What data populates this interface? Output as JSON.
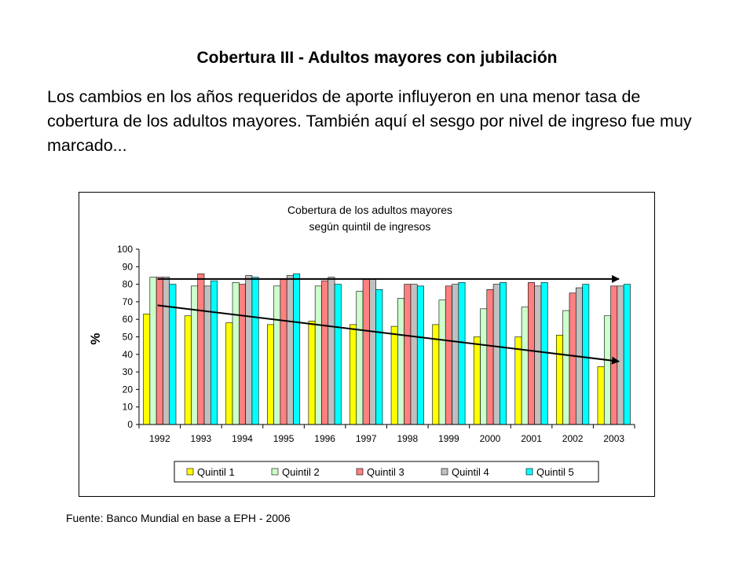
{
  "slide": {
    "title": "Cobertura III - Adultos mayores con jubilación",
    "body": "Los cambios en los años requeridos de aporte influyeron en una menor tasa de cobertura de los adultos mayores. También aquí el sesgo por nivel de ingreso fue muy marcado...",
    "source": "Fuente: Banco Mundial en base a EPH - 2006"
  },
  "chart_data": {
    "type": "bar",
    "title_lines": [
      "Cobertura de los adultos mayores",
      "según quintil de ingresos"
    ],
    "ylabel": "%",
    "xlabel": "",
    "ylim": [
      0,
      100
    ],
    "yticks": [
      0,
      10,
      20,
      30,
      40,
      50,
      60,
      70,
      80,
      90,
      100
    ],
    "grid": false,
    "legend_position": "bottom",
    "categories": [
      "1992",
      "1993",
      "1994",
      "1995",
      "1996",
      "1997",
      "1998",
      "1999",
      "2000",
      "2001",
      "2002",
      "2003"
    ],
    "series": [
      {
        "name": "Quintil 1",
        "color": "#ffff00",
        "values": [
          63,
          62,
          58,
          57,
          59,
          57,
          56,
          57,
          50,
          50,
          51,
          33
        ]
      },
      {
        "name": "Quintil 2",
        "color": "#ccffcc",
        "values": [
          84,
          79,
          81,
          79,
          79,
          76,
          72,
          71,
          66,
          67,
          65,
          62
        ]
      },
      {
        "name": "Quintil 3",
        "color": "#ff8080",
        "values": [
          84,
          86,
          80,
          83,
          82,
          83,
          80,
          79,
          77,
          81,
          75,
          79
        ]
      },
      {
        "name": "Quintil 4",
        "color": "#c0c0c0",
        "values": [
          84,
          79,
          85,
          85,
          84,
          83,
          80,
          80,
          80,
          79,
          78,
          79
        ]
      },
      {
        "name": "Quintil 5",
        "color": "#00ffff",
        "values": [
          80,
          82,
          84,
          86,
          80,
          77,
          79,
          81,
          81,
          81,
          80,
          80
        ]
      }
    ],
    "trend_arrows": [
      {
        "label": "upper trend",
        "from": [
          "1992",
          83
        ],
        "to": [
          "2003",
          83
        ]
      },
      {
        "label": "lower trend",
        "from": [
          "1992",
          68
        ],
        "to": [
          "2003",
          36
        ]
      }
    ]
  }
}
